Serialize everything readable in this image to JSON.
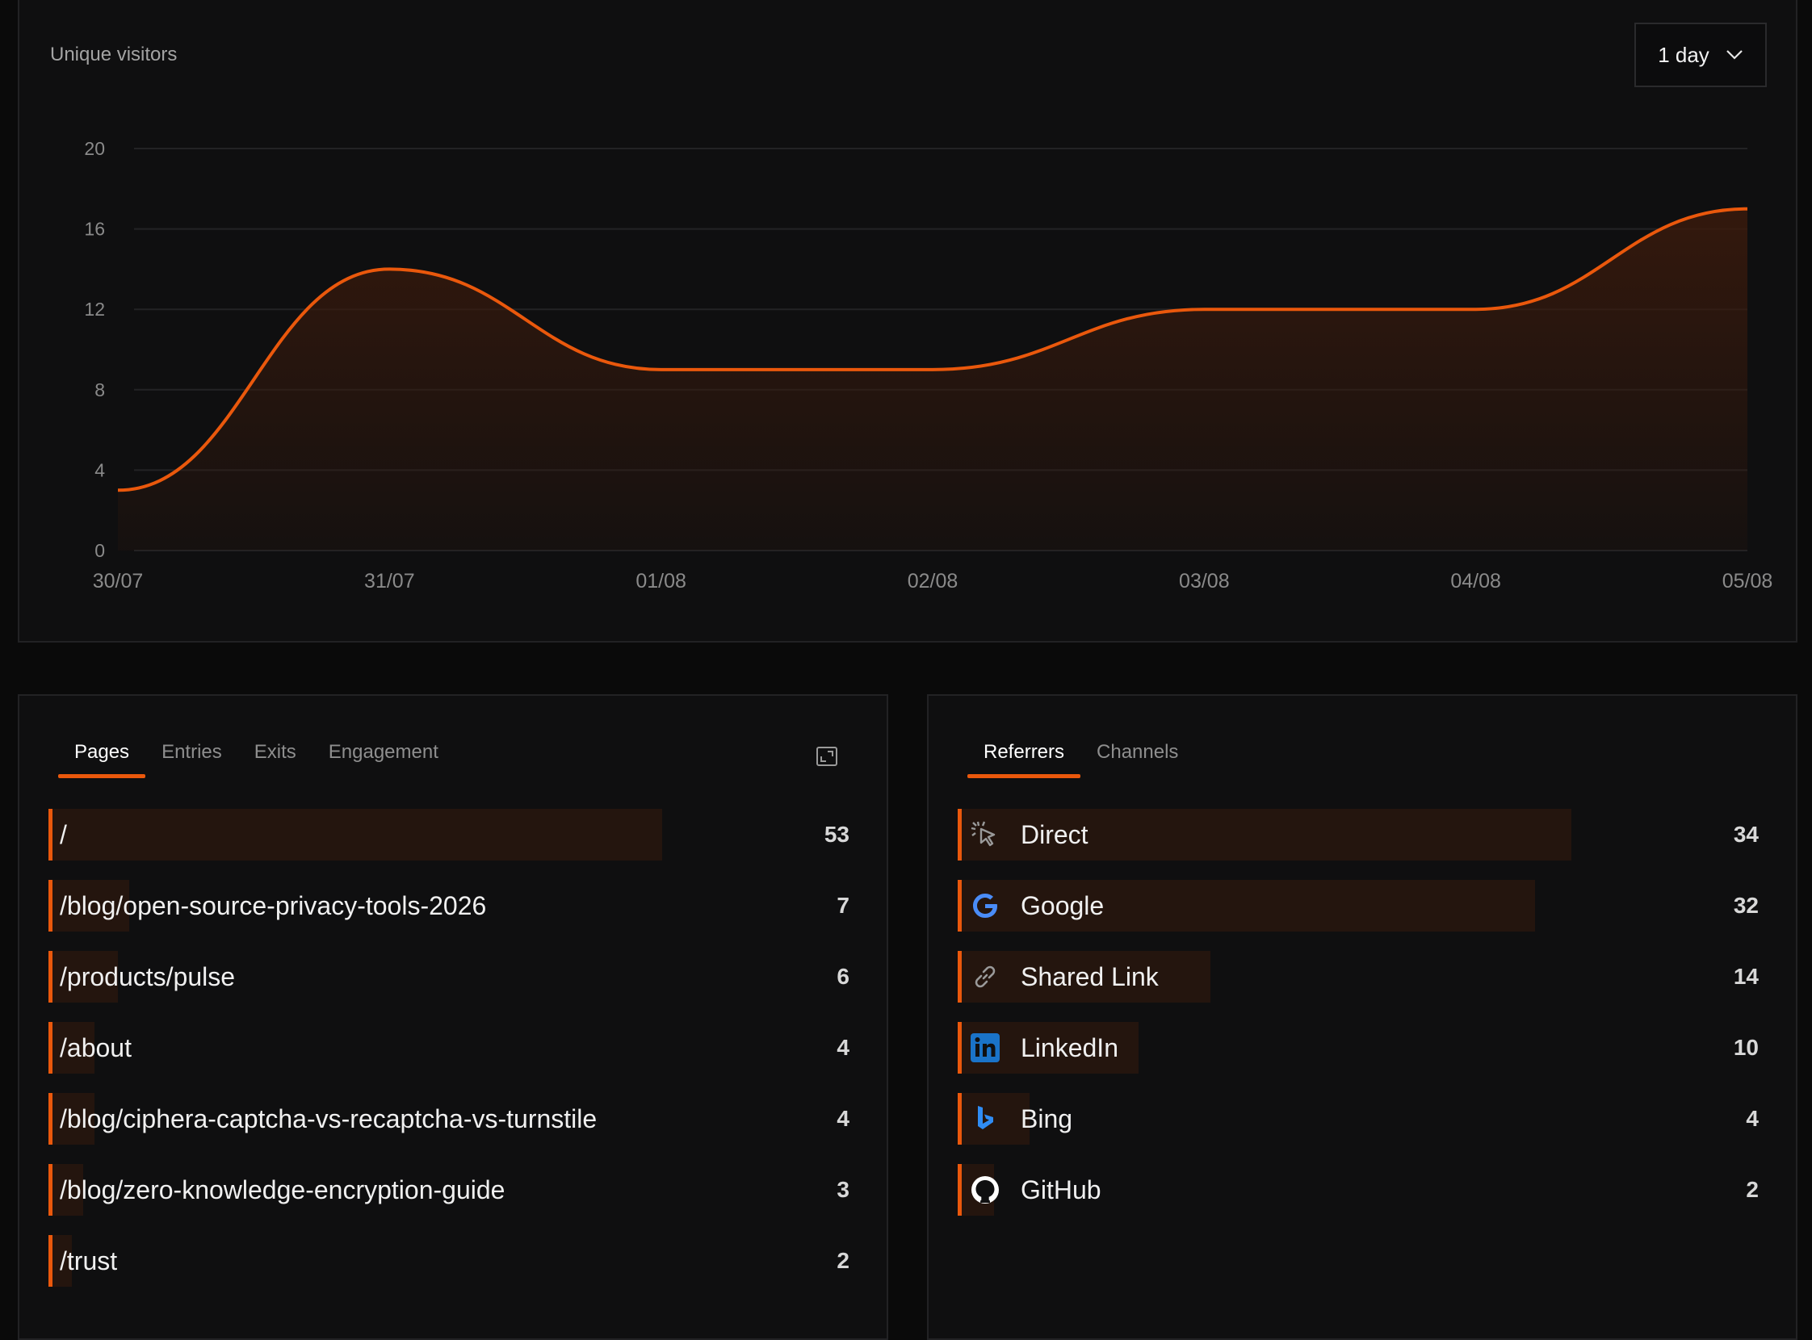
{
  "chart": {
    "title": "Unique visitors",
    "range_label": "1 day"
  },
  "chart_data": {
    "type": "area",
    "title": "Unique visitors",
    "xlabel": "",
    "ylabel": "",
    "x": [
      "30/07",
      "31/07",
      "01/08",
      "02/08",
      "03/08",
      "04/08",
      "05/08"
    ],
    "y_ticks": [
      0,
      4,
      8,
      12,
      16,
      20
    ],
    "ylim": [
      0,
      20
    ],
    "grid": true,
    "series": [
      {
        "values": [
          3,
          14,
          9,
          9,
          12,
          12,
          17
        ]
      }
    ],
    "colors": {
      "line": "#ea580c",
      "fill": "#3a1a0c"
    }
  },
  "pages": {
    "tabs": [
      {
        "label": "Pages",
        "active": true
      },
      {
        "label": "Entries",
        "active": false
      },
      {
        "label": "Exits",
        "active": false
      },
      {
        "label": "Engagement",
        "active": false
      }
    ],
    "rows": [
      {
        "path": "/",
        "count": "53",
        "value": 53
      },
      {
        "path": "/blog/open-source-privacy-tools-2026",
        "count": "7",
        "value": 7
      },
      {
        "path": "/products/pulse",
        "count": "6",
        "value": 6
      },
      {
        "path": "/about",
        "count": "4",
        "value": 4
      },
      {
        "path": "/blog/ciphera-captcha-vs-recaptcha-vs-turnstile",
        "count": "4",
        "value": 4
      },
      {
        "path": "/blog/zero-knowledge-encryption-guide",
        "count": "3",
        "value": 3
      },
      {
        "path": "/trust",
        "count": "2",
        "value": 2
      }
    ],
    "max": 53
  },
  "referrers": {
    "tabs": [
      {
        "label": "Referrers",
        "active": true
      },
      {
        "label": "Channels",
        "active": false
      }
    ],
    "rows": [
      {
        "name": "Direct",
        "count": "34",
        "value": 34,
        "icon": "cursor-click-icon"
      },
      {
        "name": "Google",
        "count": "32",
        "value": 32,
        "icon": "google-icon"
      },
      {
        "name": "Shared Link",
        "count": "14",
        "value": 14,
        "icon": "link-icon"
      },
      {
        "name": "LinkedIn",
        "count": "10",
        "value": 10,
        "icon": "linkedin-icon"
      },
      {
        "name": "Bing",
        "count": "4",
        "value": 4,
        "icon": "bing-icon"
      },
      {
        "name": "GitHub",
        "count": "2",
        "value": 2,
        "icon": "github-icon"
      }
    ],
    "max": 34
  },
  "colors": {
    "accent": "#ea580c",
    "bar_bg": "#24150e",
    "panel_bg": "#0f0f10"
  }
}
